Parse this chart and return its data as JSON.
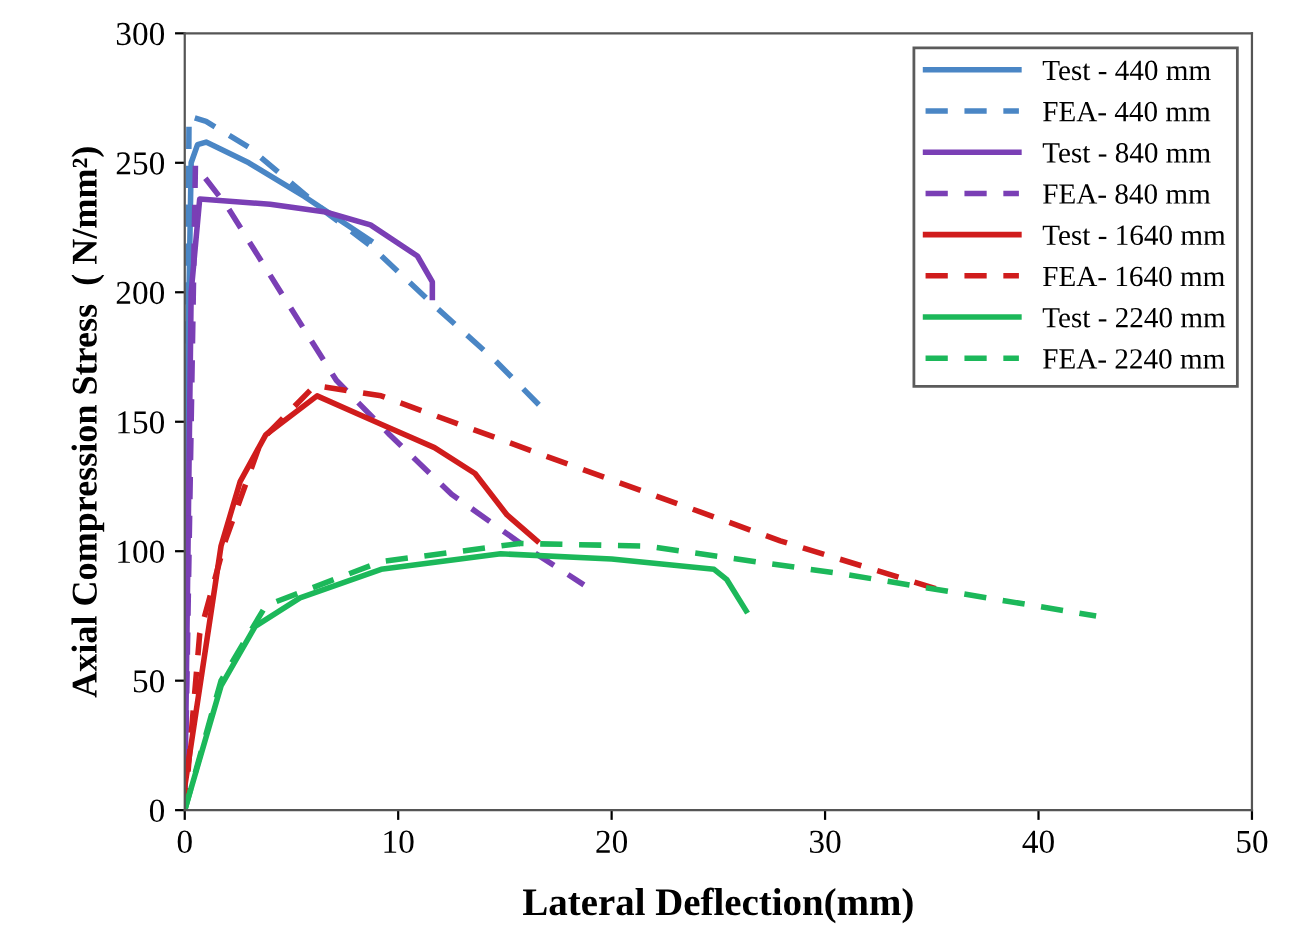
{
  "chart_data": {
    "type": "line",
    "xlabel": "Lateral Deflection(mm)",
    "ylabel": "Axial Compression Stress  ( N/mm²)",
    "xlim": [
      0,
      50
    ],
    "ylim": [
      0,
      300
    ],
    "xticks": [
      0,
      10,
      20,
      30,
      40,
      50
    ],
    "yticks": [
      0,
      50,
      100,
      150,
      200,
      250,
      300
    ],
    "grid": false,
    "legend": "top right",
    "marker": "none",
    "series": [
      {
        "name": "Test - 440 mm",
        "color": "#4a86c5",
        "line_style": "solid",
        "x": [
          0,
          0.1,
          0.3,
          0.6,
          1,
          3,
          5.6,
          8.7
        ],
        "values": [
          0,
          150,
          250,
          257,
          258,
          250,
          237,
          220
        ]
      },
      {
        "name": "FEA- 440 mm",
        "color": "#4a86c5",
        "line_style": "dashed",
        "x": [
          0,
          0.2,
          1,
          3,
          6.6,
          8.7,
          11.8,
          14.5,
          16.9
        ],
        "values": [
          0,
          268,
          266,
          256,
          231,
          218,
          194,
          174,
          154
        ]
      },
      {
        "name": "Test - 840 mm",
        "color": "#7a3fb5",
        "line_style": "solid",
        "x": [
          0,
          0.3,
          0.7,
          4,
          6.6,
          8.7,
          10.9,
          11.6,
          11.6
        ],
        "values": [
          0,
          200,
          236,
          234,
          231,
          226,
          214,
          204,
          198
        ]
      },
      {
        "name": "FEA- 840 mm",
        "color": "#7a3fb5",
        "line_style": "dashed",
        "x": [
          0,
          0.5,
          2,
          4.5,
          7.1,
          9.6,
          12.5,
          15.9,
          18.7
        ],
        "values": [
          0,
          249,
          233,
          200,
          166,
          145,
          122,
          102,
          87
        ]
      },
      {
        "name": "Test - 1640 mm",
        "color": "#d01c1c",
        "line_style": "solid",
        "x": [
          0,
          1.7,
          2.6,
          3.8,
          6.2,
          9.2,
          11.7,
          13.6,
          15.1,
          16.5
        ],
        "values": [
          9,
          102,
          127,
          145,
          160,
          149,
          140,
          130,
          114,
          104
        ]
      },
      {
        "name": "FEA- 1640 mm",
        "color": "#d01c1c",
        "line_style": "dashed",
        "x": [
          0,
          0.7,
          1.9,
          3.6,
          6.1,
          9.2,
          18.5,
          27.9,
          35.4
        ],
        "values": [
          0,
          68,
          104,
          143,
          164,
          160,
          132,
          104,
          85
        ]
      },
      {
        "name": "Test - 2240 mm",
        "color": "#1cb85a",
        "line_style": "solid",
        "x": [
          0,
          1.7,
          3.3,
          5.4,
          9.2,
          14.8,
          20,
          24.8,
          25.4,
          26.3
        ],
        "values": [
          0,
          48,
          71,
          82,
          93,
          99,
          97,
          93,
          89,
          77
        ]
      },
      {
        "name": "FEA- 2240 mm",
        "color": "#1cb85a",
        "line_style": "dashed",
        "x": [
          0,
          1.7,
          3.8,
          9.2,
          15.7,
          21.6,
          31,
          42.7
        ],
        "values": [
          0,
          50,
          79,
          96,
          103,
          102,
          91,
          75
        ]
      }
    ]
  }
}
